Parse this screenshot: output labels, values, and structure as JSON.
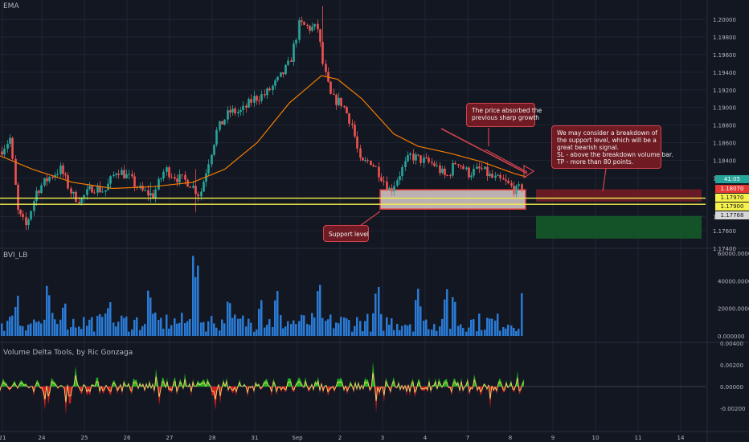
{
  "panes": {
    "main_label": "EMA",
    "volume_label": "BVI_LB",
    "delta_label": "Volume Delta Tools, by Ric Gonzaga"
  },
  "annotations": {
    "absorbed": [
      "The price absorbed the",
      "previous sharp growth"
    ],
    "breakdown": [
      "We may consider a breakdown of",
      "the support level, which will be a",
      "great bearish signal.",
      "SL - above the breakdown volume bar.",
      "TP - more than 80 points."
    ],
    "support": "Support level"
  },
  "price_tags": {
    "last": "41:05",
    "resistance": "1.18070",
    "line1": "1.17970",
    "line2": "1.17900",
    "target": "1.17768"
  },
  "colors": {
    "background": "#131722",
    "candle_up": "#26a69a",
    "candle_down": "#ef5350",
    "ema": "#f57c00",
    "volume_bar": "#2a7bd6",
    "delta_pos": "#22c51e",
    "delta_neg": "#e62020",
    "support_line": "#f5f04a",
    "annotation_fill": "#7a1c24",
    "annotation_border": "#d2434d"
  },
  "chart_data": [
    {
      "type": "candlestick",
      "title": "EMA",
      "ylim": [
        1.174,
        1.2022
      ],
      "y_ticks": [
        "1.20000",
        "1.19800",
        "1.19600",
        "1.19400",
        "1.19200",
        "1.19000",
        "1.18800",
        "1.18600",
        "1.18400",
        "1.18200",
        "1.17760",
        "1.17600",
        "1.17400"
      ],
      "y_tick_values": [
        1.2,
        1.198,
        1.196,
        1.194,
        1.192,
        1.19,
        1.188,
        1.186,
        1.184,
        1.182,
        1.1776,
        1.176,
        1.174
      ],
      "x_tick_labels": [
        "21",
        "24",
        "25",
        "26",
        "27",
        "28",
        "31",
        "Sep",
        "2",
        "3",
        "4",
        "7",
        "8",
        "9",
        "10",
        "11",
        "14"
      ],
      "path_closes": [
        [
          0,
          1.185
        ],
        [
          12,
          1.1865
        ],
        [
          22,
          1.178
        ],
        [
          32,
          1.1765
        ],
        [
          45,
          1.1805
        ],
        [
          60,
          1.182
        ],
        [
          75,
          1.183
        ],
        [
          90,
          1.18
        ],
        [
          100,
          1.1795
        ],
        [
          115,
          1.181
        ],
        [
          130,
          1.1805
        ],
        [
          145,
          1.183
        ],
        [
          160,
          1.182
        ],
        [
          175,
          1.1805
        ],
        [
          190,
          1.18
        ],
        [
          205,
          1.183
        ],
        [
          220,
          1.182
        ],
        [
          235,
          1.1815
        ],
        [
          248,
          1.18
        ],
        [
          258,
          1.1835
        ],
        [
          270,
          1.1875
        ],
        [
          285,
          1.1895
        ],
        [
          300,
          1.1895
        ],
        [
          315,
          1.191
        ],
        [
          330,
          1.1915
        ],
        [
          345,
          1.193
        ],
        [
          360,
          1.195
        ],
        [
          372,
          1.1995
        ],
        [
          385,
          1.199
        ],
        [
          395,
          1.199
        ],
        [
          402,
          1.1945
        ],
        [
          412,
          1.191
        ],
        [
          425,
          1.1905
        ],
        [
          438,
          1.188
        ],
        [
          448,
          1.1835
        ],
        [
          460,
          1.184
        ],
        [
          472,
          1.1825
        ],
        [
          485,
          1.1805
        ],
        [
          497,
          1.1825
        ],
        [
          510,
          1.1845
        ],
        [
          525,
          1.184
        ],
        [
          540,
          1.1835
        ],
        [
          555,
          1.182
        ],
        [
          568,
          1.184
        ],
        [
          582,
          1.1825
        ],
        [
          598,
          1.183
        ],
        [
          612,
          1.182
        ],
        [
          628,
          1.1815
        ],
        [
          642,
          1.1805
        ],
        [
          652,
          1.1812
        ]
      ],
      "ema_path": [
        [
          0,
          1.1845
        ],
        [
          40,
          1.183
        ],
        [
          90,
          1.1815
        ],
        [
          140,
          1.1808
        ],
        [
          190,
          1.181
        ],
        [
          240,
          1.1815
        ],
        [
          280,
          1.183
        ],
        [
          320,
          1.186
        ],
        [
          360,
          1.1905
        ],
        [
          400,
          1.1936
        ],
        [
          420,
          1.1932
        ],
        [
          450,
          1.191
        ],
        [
          490,
          1.187
        ],
        [
          520,
          1.1856
        ],
        [
          560,
          1.1848
        ],
        [
          600,
          1.1838
        ],
        [
          640,
          1.1825
        ],
        [
          655,
          1.1821
        ]
      ],
      "support_levels": [
        1.1797,
        1.179
      ],
      "support_zone": [
        1.17845,
        1.18065
      ],
      "trade_zone": {
        "stop": [
          1.1793,
          1.1807
        ],
        "target": [
          1.1751,
          1.17768
        ]
      }
    },
    {
      "type": "bar",
      "title": "BVI_LB",
      "ylim": [
        0,
        60000
      ],
      "y_ticks": [
        "60000.000000",
        "40000.000000",
        "20000.000000",
        "0.000000"
      ],
      "y_tick_values": [
        60000,
        40000,
        20000,
        0
      ],
      "approx_max": 58000
    },
    {
      "type": "area",
      "title": "Volume Delta Tools, by Ric Gonzaga",
      "ylim": [
        -0.0035,
        0.0035
      ],
      "y_ticks": [
        "0.00400",
        "0.00200",
        "0.00000",
        "-0.00200"
      ],
      "y_tick_values": [
        0.004,
        0.002,
        0.0,
        -0.002
      ],
      "range_observed": [
        -0.003,
        0.003
      ]
    }
  ]
}
